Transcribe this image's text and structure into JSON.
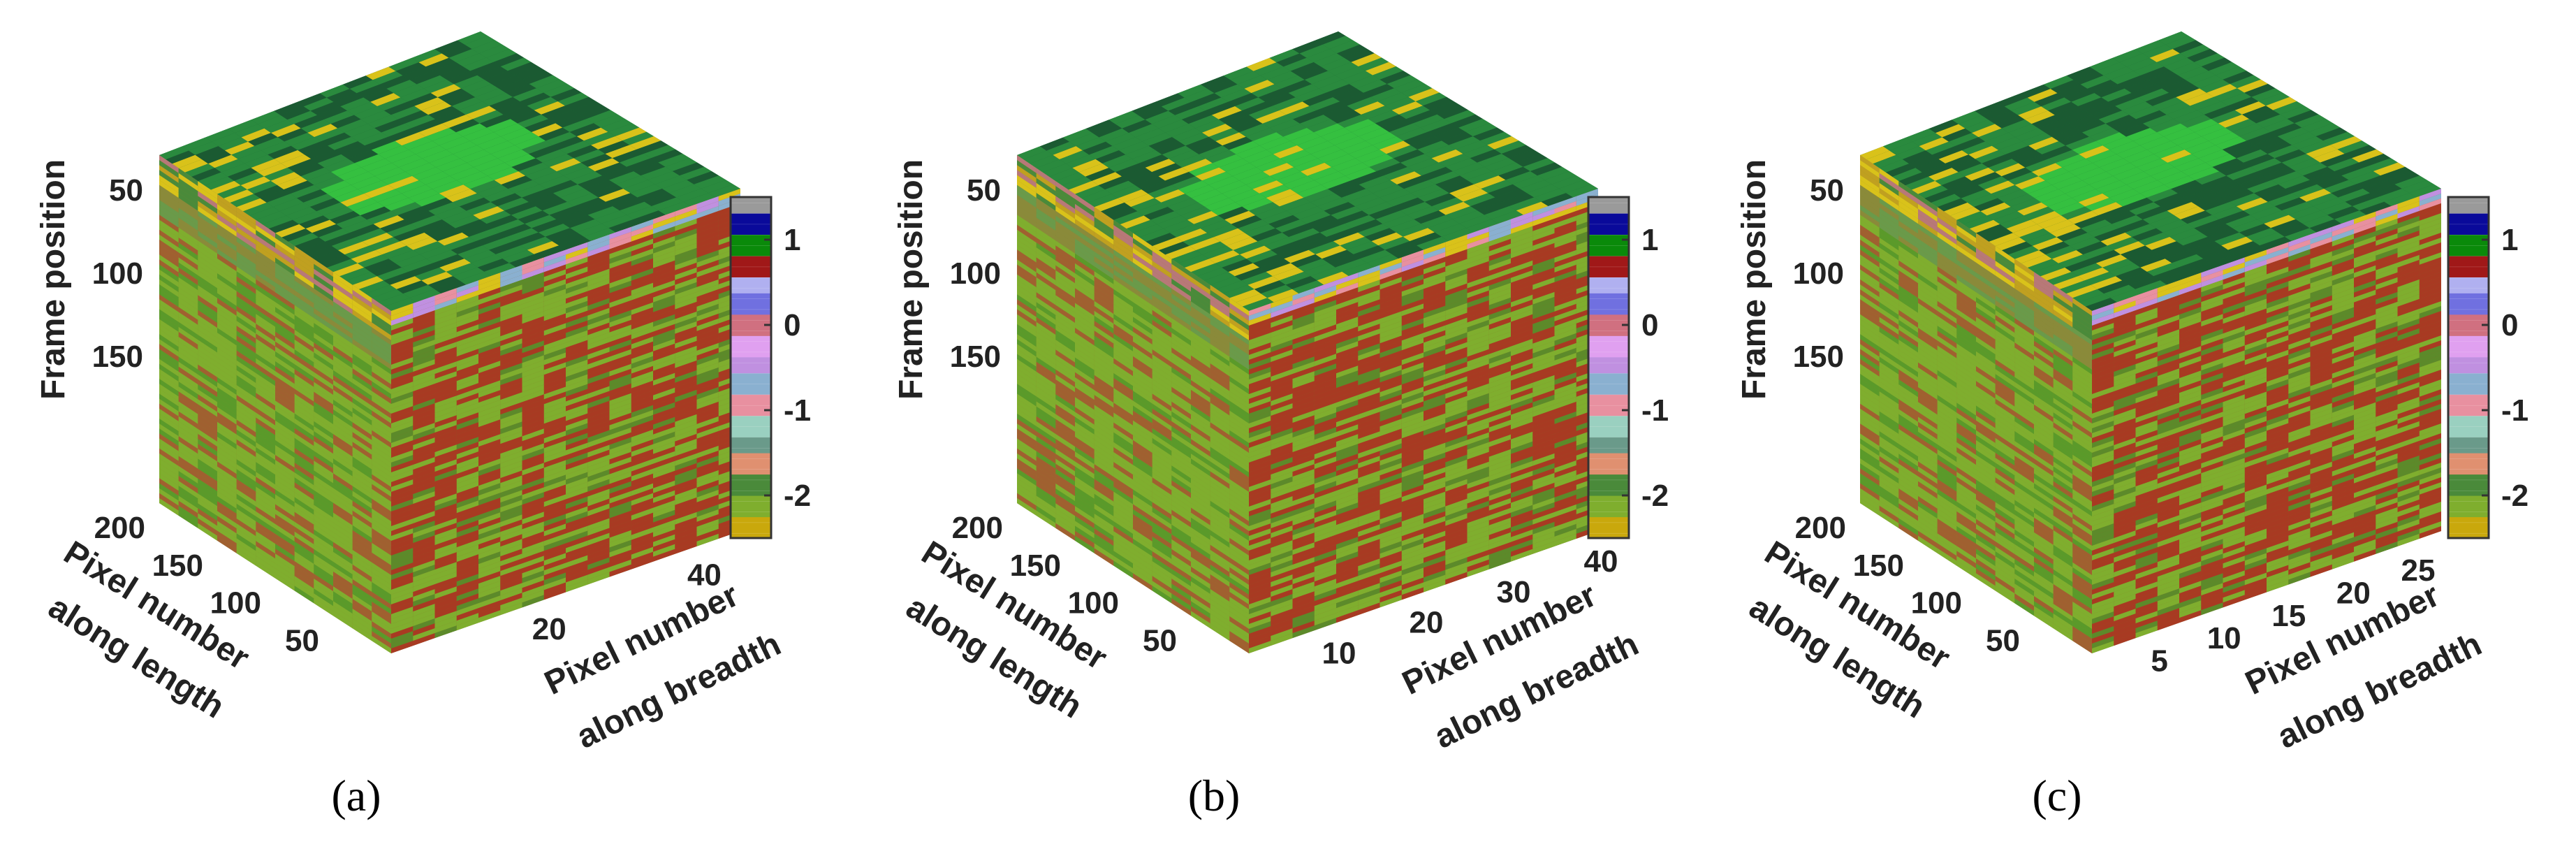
{
  "chart_data": [
    {
      "type": "heatmap",
      "panel_label": "(a)",
      "z_axis": {
        "label": "Frame position",
        "ticks": [
          50,
          100,
          150
        ]
      },
      "length_axis": {
        "label_line1": "Pixel number",
        "label_line2": "along length",
        "ticks": [
          50,
          100,
          150,
          200
        ],
        "range": [
          0,
          200
        ]
      },
      "breadth_axis": {
        "label_line1": "Pixel number",
        "label_line2": "along breadth",
        "ticks": [
          20,
          40
        ],
        "range": [
          0,
          45
        ]
      },
      "colorbar": {
        "ticks": [
          1,
          0,
          -1,
          -2
        ],
        "range": [
          -2.5,
          1.5
        ]
      }
    },
    {
      "type": "heatmap",
      "panel_label": "(b)",
      "z_axis": {
        "label": "Frame position",
        "ticks": [
          50,
          100,
          150
        ]
      },
      "length_axis": {
        "label_line1": "Pixel number",
        "label_line2": "along length",
        "ticks": [
          50,
          100,
          150,
          200
        ],
        "range": [
          0,
          200
        ]
      },
      "breadth_axis": {
        "label_line1": "Pixel number",
        "label_line2": "along breadth",
        "ticks": [
          10,
          20,
          30,
          40
        ],
        "range": [
          0,
          40
        ]
      },
      "colorbar": {
        "ticks": [
          1,
          0,
          -1,
          -2
        ],
        "range": [
          -2.5,
          1.5
        ]
      }
    },
    {
      "type": "heatmap",
      "panel_label": "(c)",
      "z_axis": {
        "label": "Frame position",
        "ticks": [
          50,
          100,
          150
        ]
      },
      "length_axis": {
        "label_line1": "Pixel number",
        "label_line2": "along length",
        "ticks": [
          50,
          100,
          150,
          200
        ],
        "range": [
          0,
          200
        ]
      },
      "breadth_axis": {
        "label_line1": "Pixel number",
        "label_line2": "along breadth",
        "ticks": [
          5,
          10,
          15,
          20,
          25
        ],
        "range": [
          0,
          27
        ]
      },
      "colorbar": {
        "ticks": [
          1,
          0,
          -1,
          -2
        ],
        "range": [
          -2.5,
          1.5
        ]
      }
    }
  ],
  "colormap": [
    "#c9a80c",
    "#7fae2e",
    "#4a8a3a",
    "#e09070",
    "#6a9a8a",
    "#9ad0c0",
    "#e890a0",
    "#8ab0d0",
    "#c090e0",
    "#e0a0f0",
    "#d07080",
    "#7070e0",
    "#b0b0f0",
    "#a01818",
    "#0a8a0a",
    "#0a0a9a",
    "#9a9a9a"
  ]
}
